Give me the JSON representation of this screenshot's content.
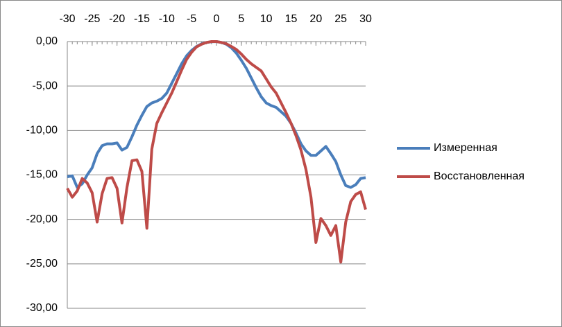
{
  "chart_data": {
    "type": "line",
    "x": [
      -30,
      -29,
      -28,
      -27,
      -26,
      -25,
      -24,
      -23,
      -22,
      -21,
      -20,
      -19,
      -18,
      -17,
      -16,
      -15,
      -14,
      -13,
      -12,
      -11,
      -10,
      -9,
      -8,
      -7,
      -6,
      -5,
      -4,
      -3,
      -2,
      -1,
      0,
      1,
      2,
      3,
      4,
      5,
      6,
      7,
      8,
      9,
      10,
      11,
      12,
      13,
      14,
      15,
      16,
      17,
      18,
      19,
      20,
      21,
      22,
      23,
      24,
      25,
      26,
      27,
      28,
      29,
      30
    ],
    "series": [
      {
        "name": "Измеренная",
        "color": "#4a7ebb",
        "values": [
          -15.2,
          -15.1,
          -16.4,
          -16.0,
          -15.0,
          -14.2,
          -12.6,
          -11.7,
          -11.5,
          -11.5,
          -11.4,
          -12.2,
          -11.9,
          -10.7,
          -9.4,
          -8.3,
          -7.3,
          -6.9,
          -6.7,
          -6.4,
          -5.8,
          -4.7,
          -3.6,
          -2.5,
          -1.6,
          -1.0,
          -0.55,
          -0.25,
          -0.1,
          -0.02,
          0,
          -0.1,
          -0.3,
          -0.7,
          -1.3,
          -2.1,
          -3.0,
          -4.1,
          -5.2,
          -6.2,
          -6.9,
          -7.2,
          -7.4,
          -7.9,
          -8.4,
          -9.2,
          -10.3,
          -11.5,
          -12.3,
          -12.8,
          -12.8,
          -12.3,
          -11.8,
          -12.6,
          -13.5,
          -15.0,
          -16.2,
          -16.4,
          -16.1,
          -15.4,
          -15.3
        ]
      },
      {
        "name": "Восстановленная",
        "color": "#be4b48",
        "values": [
          -16.5,
          -17.5,
          -16.8,
          -15.4,
          -15.9,
          -17.0,
          -20.3,
          -17.1,
          -15.4,
          -15.3,
          -16.5,
          -20.4,
          -16.4,
          -13.4,
          -13.3,
          -14.6,
          -21.0,
          -12.1,
          -9.2,
          -8.0,
          -6.9,
          -5.8,
          -4.5,
          -3.2,
          -2.0,
          -1.2,
          -0.6,
          -0.3,
          -0.1,
          0,
          0,
          -0.1,
          -0.25,
          -0.55,
          -0.9,
          -1.4,
          -2.0,
          -2.5,
          -2.9,
          -3.3,
          -4.2,
          -5.1,
          -5.8,
          -6.9,
          -8.0,
          -9.2,
          -10.6,
          -12.2,
          -14.4,
          -17.5,
          -22.6,
          -19.9,
          -20.7,
          -21.8,
          -20.7,
          -24.8,
          -20.3,
          -18.0,
          -17.2,
          -16.9,
          -18.9
        ]
      }
    ],
    "xlim": [
      -30,
      30
    ],
    "xticks": [
      -30,
      -25,
      -20,
      -15,
      -10,
      -5,
      0,
      5,
      10,
      15,
      20,
      25,
      30
    ],
    "ylim": [
      -30,
      0
    ],
    "yticks": [
      {
        "value": 0,
        "label": "0,00"
      },
      {
        "value": -5,
        "label": "-5,00"
      },
      {
        "value": -10,
        "label": "-10,00"
      },
      {
        "value": -15,
        "label": "-15,00"
      },
      {
        "value": -20,
        "label": "-20,00"
      },
      {
        "value": -25,
        "label": "-25,00"
      },
      {
        "value": -30,
        "label": "-30,00"
      }
    ],
    "grid": true,
    "legend": "right"
  }
}
